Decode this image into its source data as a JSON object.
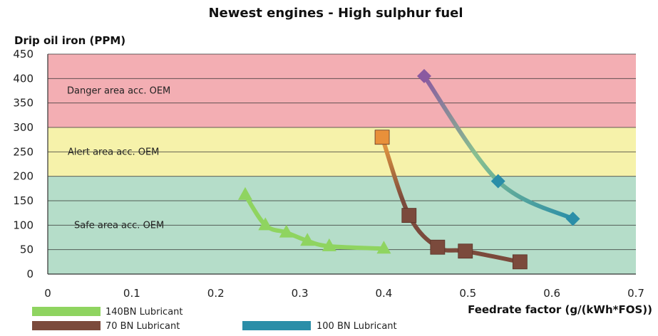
{
  "chart_data": {
    "type": "line",
    "title": "Newest engines - High sulphur fuel",
    "ylabel": "Drip oil iron (PPM)",
    "xlabel": "Feedrate factor (g/(kWh*FOS))",
    "xlim": [
      0,
      0.7
    ],
    "ylim": [
      0,
      450
    ],
    "xticks": [
      "0",
      "0.1",
      "0.2",
      "0.3",
      "0.4",
      "0.5",
      "0.6",
      "0.7"
    ],
    "yticks": [
      "0",
      "50",
      "100",
      "150",
      "200",
      "250",
      "300",
      "350",
      "400",
      "450"
    ],
    "zones": [
      {
        "label": "Safe area acc. OEM",
        "from": 0,
        "to": 200,
        "color": "#b5ddc9"
      },
      {
        "label": "Alert area acc. OEM",
        "from": 200,
        "to": 300,
        "color": "#f6f2aa"
      },
      {
        "label": "Danger area acc. OEM",
        "from": 300,
        "to": 450,
        "color": "#f3aeb3"
      }
    ],
    "series": [
      {
        "name": "140BN Lubricant",
        "marker": "triangle",
        "color": "#8fd460",
        "x": [
          0.235,
          0.259,
          0.284,
          0.309,
          0.335,
          0.4
        ],
        "y": [
          162,
          100,
          85,
          68,
          57,
          52
        ]
      },
      {
        "name": "70 BN Lubricant",
        "marker": "square",
        "color": "#7b4a3c",
        "x": [
          0.398,
          0.43,
          0.464,
          0.497,
          0.562
        ],
        "y": [
          280,
          120,
          55,
          47,
          25
        ]
      },
      {
        "name": "100 BN Lubricant",
        "marker": "diamond",
        "color": "#2b8ea8",
        "x": [
          0.448,
          0.536,
          0.625
        ],
        "y": [
          405,
          190,
          113
        ]
      }
    ],
    "legend_position": "bottom-left"
  }
}
